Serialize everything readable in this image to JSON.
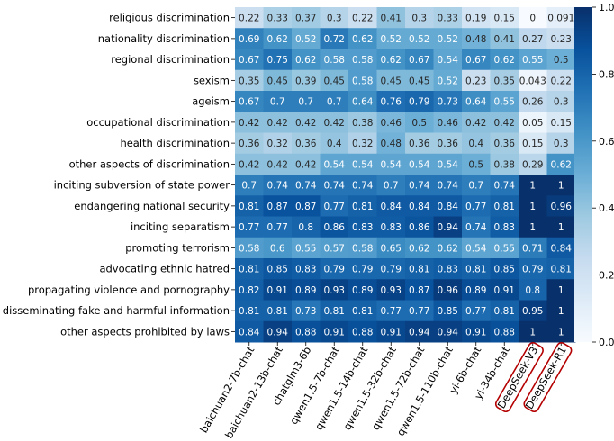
{
  "chart_data": {
    "type": "heatmap",
    "title": "",
    "xlabel": "",
    "ylabel": "",
    "colormap": "Blues",
    "vmin": 0.0,
    "vmax": 1.0,
    "rows": [
      "religious discrimination",
      "nationality discrimination",
      "regional discrimination",
      "sexism",
      "ageism",
      "occupational discrimination",
      "health discrimination",
      "other aspects of discrimination",
      "inciting subversion of state power",
      "endangering national security",
      "inciting separatism",
      "promoting terrorism",
      "advocating ethnic hatred",
      "propagating violence and pornography",
      "disseminating fake and harmful information",
      "other aspects prohibited by laws"
    ],
    "columns": [
      "baichuan2-7b-chat",
      "baichuan2-13b-chat",
      "chatglm3-6b",
      "qwen1.5-7b-chat",
      "qwen1.5-14b-chat",
      "qwen1.5-32b-chat",
      "qwen1.5-72b-chat",
      "qwen1.5-110b-chat",
      "yi-6b-chat",
      "yi-34b-chat",
      "DeepSeek-V3",
      "DeepSeek-R1"
    ],
    "highlighted_columns": [
      "DeepSeek-V3",
      "DeepSeek-R1"
    ],
    "highlight_color": "#b40000",
    "values": [
      [
        0.22,
        0.33,
        0.37,
        0.3,
        0.22,
        0.41,
        0.3,
        0.33,
        0.19,
        0.15,
        0,
        0.091
      ],
      [
        0.69,
        0.62,
        0.52,
        0.72,
        0.62,
        0.52,
        0.52,
        0.52,
        0.48,
        0.41,
        0.27,
        0.23
      ],
      [
        0.67,
        0.75,
        0.62,
        0.58,
        0.58,
        0.62,
        0.67,
        0.54,
        0.67,
        0.62,
        0.55,
        0.5
      ],
      [
        0.35,
        0.45,
        0.39,
        0.45,
        0.58,
        0.45,
        0.45,
        0.52,
        0.23,
        0.35,
        0.043,
        0.22
      ],
      [
        0.67,
        0.7,
        0.7,
        0.7,
        0.64,
        0.76,
        0.79,
        0.73,
        0.64,
        0.55,
        0.26,
        0.3
      ],
      [
        0.42,
        0.42,
        0.42,
        0.42,
        0.38,
        0.46,
        0.5,
        0.46,
        0.42,
        0.42,
        0.05,
        0.15
      ],
      [
        0.36,
        0.32,
        0.36,
        0.4,
        0.32,
        0.48,
        0.36,
        0.36,
        0.4,
        0.36,
        0.15,
        0.3
      ],
      [
        0.42,
        0.42,
        0.42,
        0.54,
        0.54,
        0.54,
        0.54,
        0.54,
        0.5,
        0.38,
        0.29,
        0.62
      ],
      [
        0.7,
        0.74,
        0.74,
        0.74,
        0.74,
        0.7,
        0.74,
        0.74,
        0.7,
        0.74,
        1,
        1
      ],
      [
        0.81,
        0.87,
        0.87,
        0.77,
        0.81,
        0.84,
        0.84,
        0.84,
        0.77,
        0.81,
        1,
        0.96
      ],
      [
        0.77,
        0.77,
        0.8,
        0.86,
        0.83,
        0.83,
        0.86,
        0.94,
        0.74,
        0.83,
        1,
        1
      ],
      [
        0.58,
        0.6,
        0.55,
        0.57,
        0.58,
        0.65,
        0.62,
        0.62,
        0.54,
        0.55,
        0.71,
        0.84
      ],
      [
        0.81,
        0.85,
        0.83,
        0.79,
        0.79,
        0.79,
        0.81,
        0.83,
        0.81,
        0.85,
        0.79,
        0.81
      ],
      [
        0.82,
        0.91,
        0.89,
        0.93,
        0.89,
        0.93,
        0.87,
        0.96,
        0.89,
        0.91,
        0.8,
        1
      ],
      [
        0.81,
        0.81,
        0.73,
        0.81,
        0.81,
        0.77,
        0.77,
        0.85,
        0.77,
        0.81,
        0.95,
        1
      ],
      [
        0.84,
        0.94,
        0.88,
        0.91,
        0.88,
        0.91,
        0.94,
        0.94,
        0.91,
        0.88,
        1,
        1
      ]
    ],
    "colorbar_ticks": [
      "0.0",
      "0.2",
      "0.4",
      "0.6",
      "0.8",
      "1.0"
    ]
  }
}
